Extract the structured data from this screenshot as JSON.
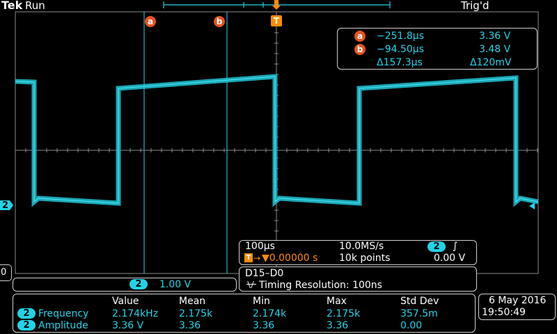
{
  "header": {
    "brand": "Tek",
    "run_state": "Run",
    "trigger_status": "Trig'd"
  },
  "cursors": {
    "a_label": "a",
    "b_label": "b",
    "a_time": "−251.8µs",
    "a_volt": "3.36 V",
    "b_time": "−94.50µs",
    "b_volt": "3.48 V",
    "delta_time": "Δ157.3µs",
    "delta_volt": "Δ120mV"
  },
  "trigger_marker": "T",
  "channel": {
    "number": "2",
    "scale": "1.00 V"
  },
  "ground_marker_label": "0",
  "acquisition": {
    "timebase": "100µs",
    "sample_rate": "10.0MS/s",
    "trigger_channel": "2",
    "trigger_slope_glyph": "∫",
    "trigger_position": "▼0.00000 s",
    "record_length": "10k points",
    "trigger_level": "0.00 V"
  },
  "digital": {
    "channels": "D15–D0",
    "timing_resolution": "Timing Resolution: 100ns"
  },
  "measurements": {
    "headers": [
      "Value",
      "Mean",
      "Min",
      "Max",
      "Std Dev"
    ],
    "rows": [
      {
        "channel": "2",
        "name": "Frequency",
        "value": "2.174kHz",
        "mean": "2.175k",
        "min": "2.174k",
        "max": "2.175k",
        "std": "357.5m"
      },
      {
        "channel": "2",
        "name": "Amplitude",
        "value": "3.36 V",
        "mean": "3.36",
        "min": "3.36",
        "max": "3.36",
        "std": "0.00"
      }
    ]
  },
  "datetime": {
    "date": "6 May 2016",
    "time": "19:50:49"
  },
  "colors": {
    "trace": "#22d3e6",
    "cursor_marker": "#e8531f",
    "trigger": "#ff8c00",
    "grid": "#8a8a8a"
  }
}
